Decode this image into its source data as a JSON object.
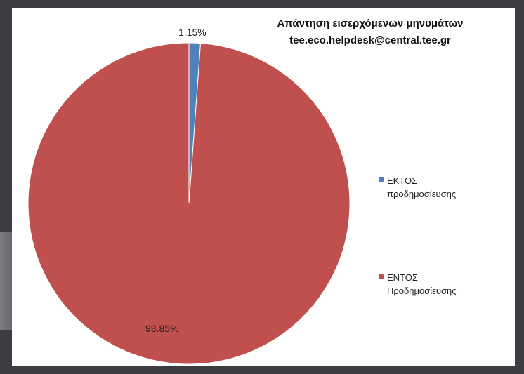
{
  "chart_data": {
    "type": "pie",
    "title_line1": "Απάντηση εισερχόμενων μηνυμάτων",
    "title_line2": "tee.eco.helpdesk@central.tee.gr",
    "slices": [
      {
        "label": "ΕΚΤΟΣ προδημοσίευσης",
        "value": 1.15,
        "display": "1.15%",
        "color": "#4f81bd"
      },
      {
        "label": "ΕΝΤΟΣ Προδημοσίευσης",
        "value": 98.85,
        "display": "98.85%",
        "color": "#c0504d"
      }
    ],
    "legend": [
      {
        "line1": "ΕΚΤΟΣ",
        "line2": "προδημοσίευσης",
        "color": "#4f81bd"
      },
      {
        "line1": "ΕΝΤΟΣ",
        "line2": "Προδημοσίευσης",
        "color": "#c0504d"
      }
    ],
    "legend_position": "right"
  }
}
